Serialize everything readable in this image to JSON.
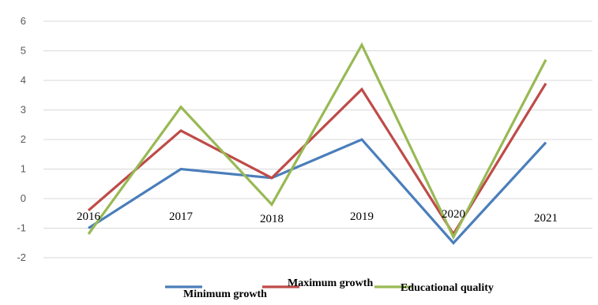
{
  "chart_data": {
    "type": "line",
    "title": "",
    "xlabel": "",
    "ylabel": "",
    "categories": [
      "2016",
      "2017",
      "2018",
      "2019",
      "2020",
      "2021"
    ],
    "ylim": [
      -2,
      6
    ],
    "yticks": [
      "6",
      "5",
      "4",
      "3",
      "2",
      "1",
      "0",
      "-1",
      "-2"
    ],
    "grid": true,
    "legend_position": "bottom",
    "series": [
      {
        "name": "Minimum growth",
        "color": "#4a7ebb",
        "values": [
          -1.0,
          1.0,
          0.7,
          2.0,
          -1.5,
          1.9
        ]
      },
      {
        "name": "Maximum growth",
        "color": "#be4b48",
        "values": [
          -0.4,
          2.3,
          0.7,
          3.7,
          -1.2,
          3.9
        ]
      },
      {
        "name": "Educational quality",
        "color": "#98b954",
        "values": [
          -1.2,
          3.1,
          -0.2,
          5.2,
          -1.3,
          4.7
        ]
      }
    ]
  }
}
